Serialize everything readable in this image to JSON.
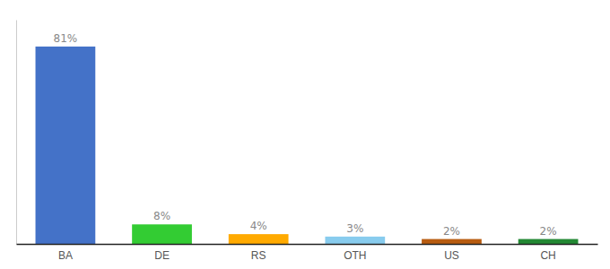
{
  "chart_data": {
    "type": "bar",
    "categories": [
      "BA",
      "DE",
      "RS",
      "OTH",
      "US",
      "CH"
    ],
    "values": [
      81,
      8,
      4,
      3,
      2,
      2
    ],
    "value_labels": [
      "81%",
      "8%",
      "4%",
      "3%",
      "2%",
      "2%"
    ],
    "colors": [
      "#4472c8",
      "#33cc33",
      "#ffaa00",
      "#88ccee",
      "#b85c10",
      "#228833"
    ],
    "ylim": [
      0,
      92
    ],
    "data_labels": true,
    "tick_labels": "x",
    "grid": false
  }
}
